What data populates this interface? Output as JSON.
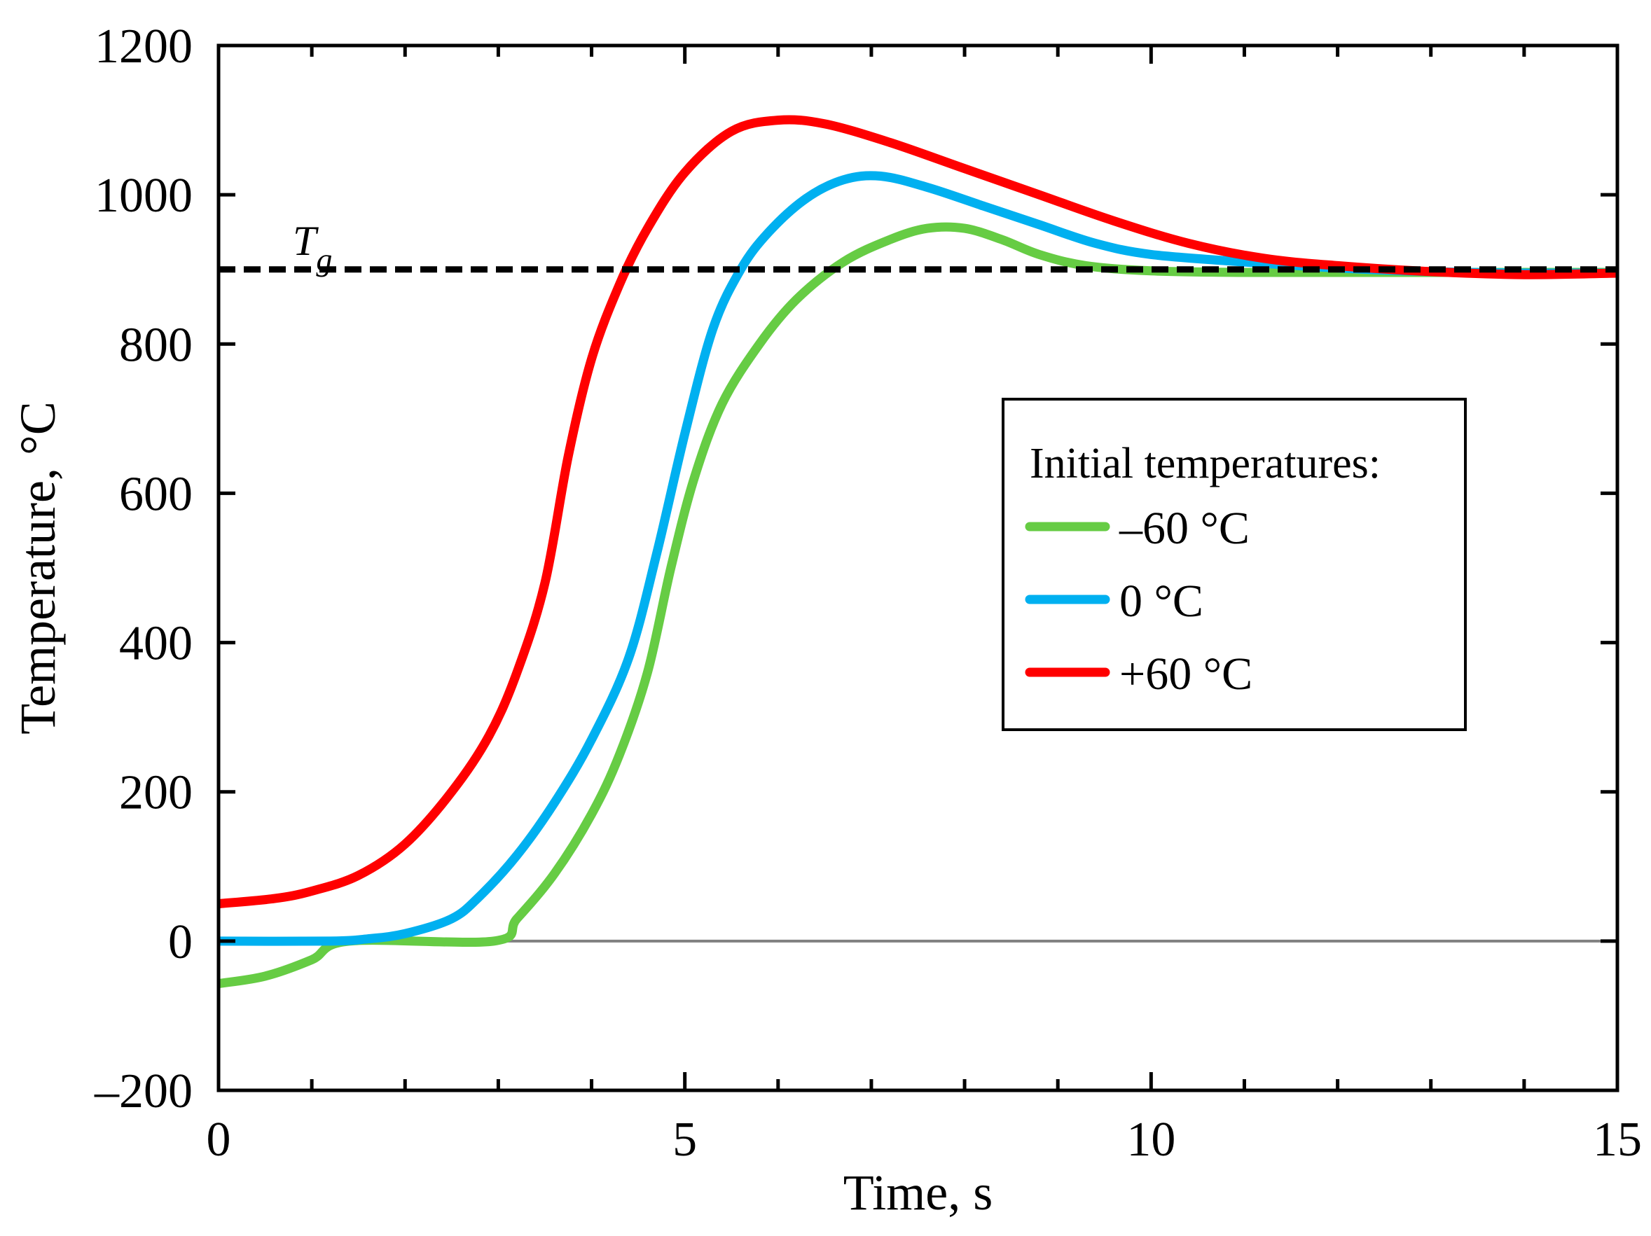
{
  "chart_data": {
    "type": "line",
    "title": "",
    "xlabel": "Time, s",
    "ylabel": "Temperature, °C",
    "xlim": [
      0,
      15
    ],
    "ylim": [
      -200,
      1200
    ],
    "x_ticks": [
      0,
      5,
      10,
      15
    ],
    "x_tick_labels": [
      "0",
      "5",
      "10",
      "15"
    ],
    "x_minor_step": 1,
    "y_ticks": [
      -200,
      0,
      200,
      400,
      600,
      800,
      1000,
      1200
    ],
    "y_tick_labels": [
      "–200",
      "0",
      "200",
      "400",
      "600",
      "800",
      "1000",
      "1200"
    ],
    "reference_lines": [
      {
        "name": "zero",
        "y": 0,
        "color": "#808080",
        "style": "solid"
      },
      {
        "name": "Tg",
        "label_main": "T",
        "label_sub": "g",
        "y": 900,
        "color": "#000000",
        "style": "dashed"
      }
    ],
    "legend": {
      "title": "Initial temperatures:",
      "placement": "center-right"
    },
    "series": [
      {
        "name": "–60 °C",
        "color": "#66cc44",
        "points": [
          [
            0,
            -57
          ],
          [
            0.5,
            -47
          ],
          [
            1.0,
            -25
          ],
          [
            1.4,
            0
          ],
          [
            2.95,
            0
          ],
          [
            3.2,
            30
          ],
          [
            3.6,
            90
          ],
          [
            4.0,
            170
          ],
          [
            4.3,
            250
          ],
          [
            4.6,
            360
          ],
          [
            4.85,
            500
          ],
          [
            5.1,
            620
          ],
          [
            5.4,
            720
          ],
          [
            5.8,
            800
          ],
          [
            6.2,
            860
          ],
          [
            6.7,
            910
          ],
          [
            7.2,
            940
          ],
          [
            7.6,
            955
          ],
          [
            8.0,
            955
          ],
          [
            8.4,
            940
          ],
          [
            8.8,
            920
          ],
          [
            9.3,
            905
          ],
          [
            10,
            898
          ],
          [
            11,
            896
          ],
          [
            12,
            896
          ],
          [
            13,
            896
          ],
          [
            14,
            896
          ],
          [
            15,
            896
          ]
        ]
      },
      {
        "name": "0 °C",
        "color": "#00b0f0",
        "points": [
          [
            0,
            0
          ],
          [
            1.2,
            0
          ],
          [
            1.6,
            3
          ],
          [
            2.0,
            10
          ],
          [
            2.5,
            30
          ],
          [
            2.8,
            60
          ],
          [
            3.2,
            115
          ],
          [
            3.6,
            185
          ],
          [
            4.0,
            270
          ],
          [
            4.4,
            380
          ],
          [
            4.7,
            520
          ],
          [
            5.0,
            680
          ],
          [
            5.3,
            820
          ],
          [
            5.6,
            900
          ],
          [
            5.9,
            950
          ],
          [
            6.3,
            995
          ],
          [
            6.7,
            1020
          ],
          [
            7.1,
            1025
          ],
          [
            7.6,
            1010
          ],
          [
            8.2,
            985
          ],
          [
            8.8,
            960
          ],
          [
            9.4,
            935
          ],
          [
            10,
            920
          ],
          [
            11,
            910
          ],
          [
            12,
            902
          ],
          [
            13,
            897
          ],
          [
            14,
            895
          ],
          [
            15,
            895
          ]
        ]
      },
      {
        "name": "+60 °C",
        "color": "#ff0000",
        "points": [
          [
            0,
            50
          ],
          [
            0.6,
            57
          ],
          [
            1.0,
            67
          ],
          [
            1.5,
            88
          ],
          [
            2.0,
            130
          ],
          [
            2.5,
            200
          ],
          [
            2.9,
            275
          ],
          [
            3.2,
            360
          ],
          [
            3.5,
            480
          ],
          [
            3.75,
            650
          ],
          [
            4.0,
            780
          ],
          [
            4.3,
            880
          ],
          [
            4.6,
            955
          ],
          [
            5.0,
            1030
          ],
          [
            5.5,
            1085
          ],
          [
            6.0,
            1100
          ],
          [
            6.5,
            1095
          ],
          [
            7.2,
            1070
          ],
          [
            8.0,
            1035
          ],
          [
            8.8,
            1000
          ],
          [
            9.6,
            965
          ],
          [
            10.4,
            935
          ],
          [
            11.2,
            915
          ],
          [
            12,
            905
          ],
          [
            13,
            897
          ],
          [
            14,
            893
          ],
          [
            15,
            895
          ]
        ]
      }
    ]
  }
}
